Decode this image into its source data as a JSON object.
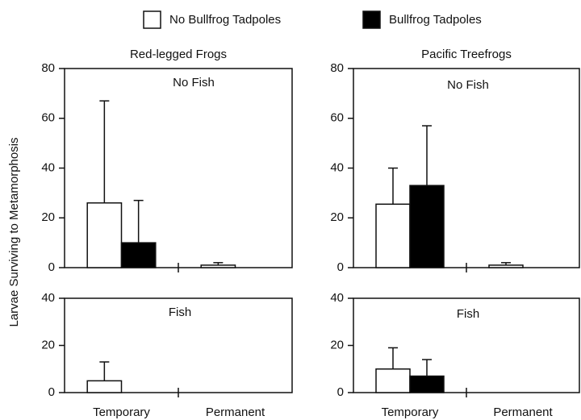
{
  "chart_data": [
    {
      "type": "bar",
      "title": "Red-legged Frogs",
      "subtitle": "No Fish",
      "ylabel": "Larvae Surviving to Metamorphosis",
      "categories": [
        null,
        null
      ],
      "ylim": [
        0,
        80
      ],
      "yticks": [
        0,
        20,
        40,
        60,
        80
      ],
      "series": [
        {
          "name": "No Bullfrog Tadpoles",
          "color": "#ffffff",
          "values": [
            26,
            1
          ],
          "errors": [
            41,
            1
          ]
        },
        {
          "name": "Bullfrog Tadpoles",
          "color": "#000000",
          "values": [
            10,
            0
          ],
          "errors": [
            17,
            null
          ]
        }
      ]
    },
    {
      "type": "bar",
      "title": "Pacific Treefrogs",
      "subtitle": "No Fish",
      "categories": [
        null,
        null
      ],
      "ylim": [
        0,
        80
      ],
      "yticks": [
        0,
        20,
        40,
        60,
        80
      ],
      "series": [
        {
          "color": "#ffffff",
          "values": [
            25.5,
            1
          ],
          "errors": [
            14.5,
            1
          ]
        },
        {
          "color": "#000000",
          "values": [
            33,
            0
          ],
          "errors": [
            24,
            null
          ]
        }
      ]
    },
    {
      "type": "bar",
      "subtitle": "Fish",
      "categories": [
        "Temporary",
        "Permanent"
      ],
      "ylim": [
        0,
        40
      ],
      "yticks": [
        0,
        20,
        40
      ],
      "series": [
        {
          "color": "#ffffff",
          "values": [
            5,
            0
          ],
          "errors": [
            8,
            null
          ]
        },
        {
          "color": "#000000",
          "values": [
            0,
            0
          ],
          "errors": [
            null,
            null
          ]
        }
      ]
    },
    {
      "type": "bar",
      "subtitle": "Fish",
      "categories": [
        "Temporary",
        "Permanent"
      ],
      "ylim": [
        0,
        40
      ],
      "yticks": [
        0,
        20,
        40
      ],
      "series": [
        {
          "color": "#ffffff",
          "values": [
            10,
            0
          ],
          "errors": [
            9,
            null
          ]
        },
        {
          "color": "#000000",
          "values": [
            7,
            0
          ],
          "errors": [
            7,
            null
          ]
        }
      ]
    }
  ]
}
